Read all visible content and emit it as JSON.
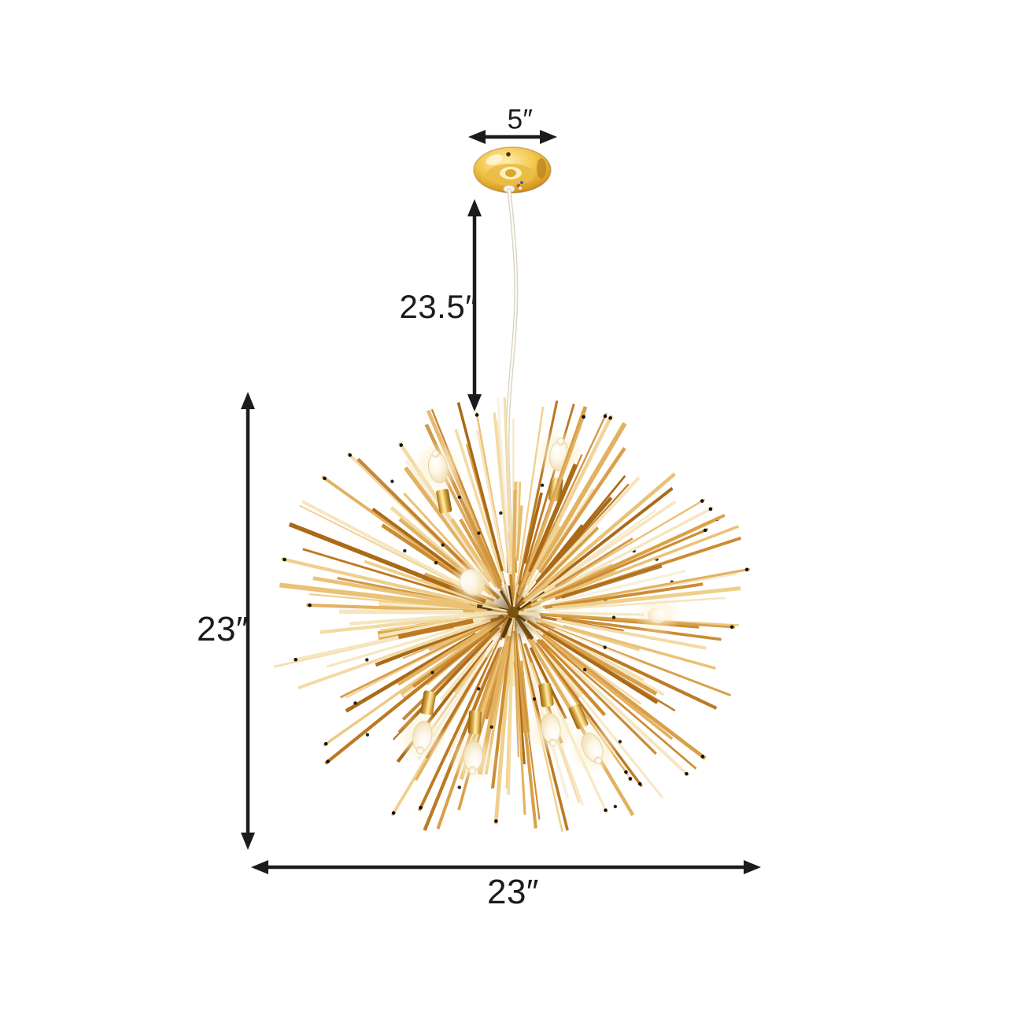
{
  "diagram": {
    "name": "chandelier-dimension-diagram",
    "figure": "gold-sputnik-sunburst-chandelier",
    "parts": {
      "canopy": "ceiling-canopy",
      "cord": "hanging-cord",
      "fixture": "sputnik-sphere"
    }
  },
  "dimensions": {
    "canopy_width": {
      "label": "5″"
    },
    "hanging_drop": {
      "label": "23.5″"
    },
    "fixture_height": {
      "label": "23″"
    },
    "fixture_width": {
      "label": "23″"
    }
  },
  "colors": {
    "background": "#ffffff",
    "annotation": "#1b1b1b",
    "gold_light": "#f3dba4",
    "gold": "#eac276",
    "gold_deep": "#d79d3e",
    "bronze": "#b57a1e",
    "bulb_glow": "#fdf3d8"
  }
}
